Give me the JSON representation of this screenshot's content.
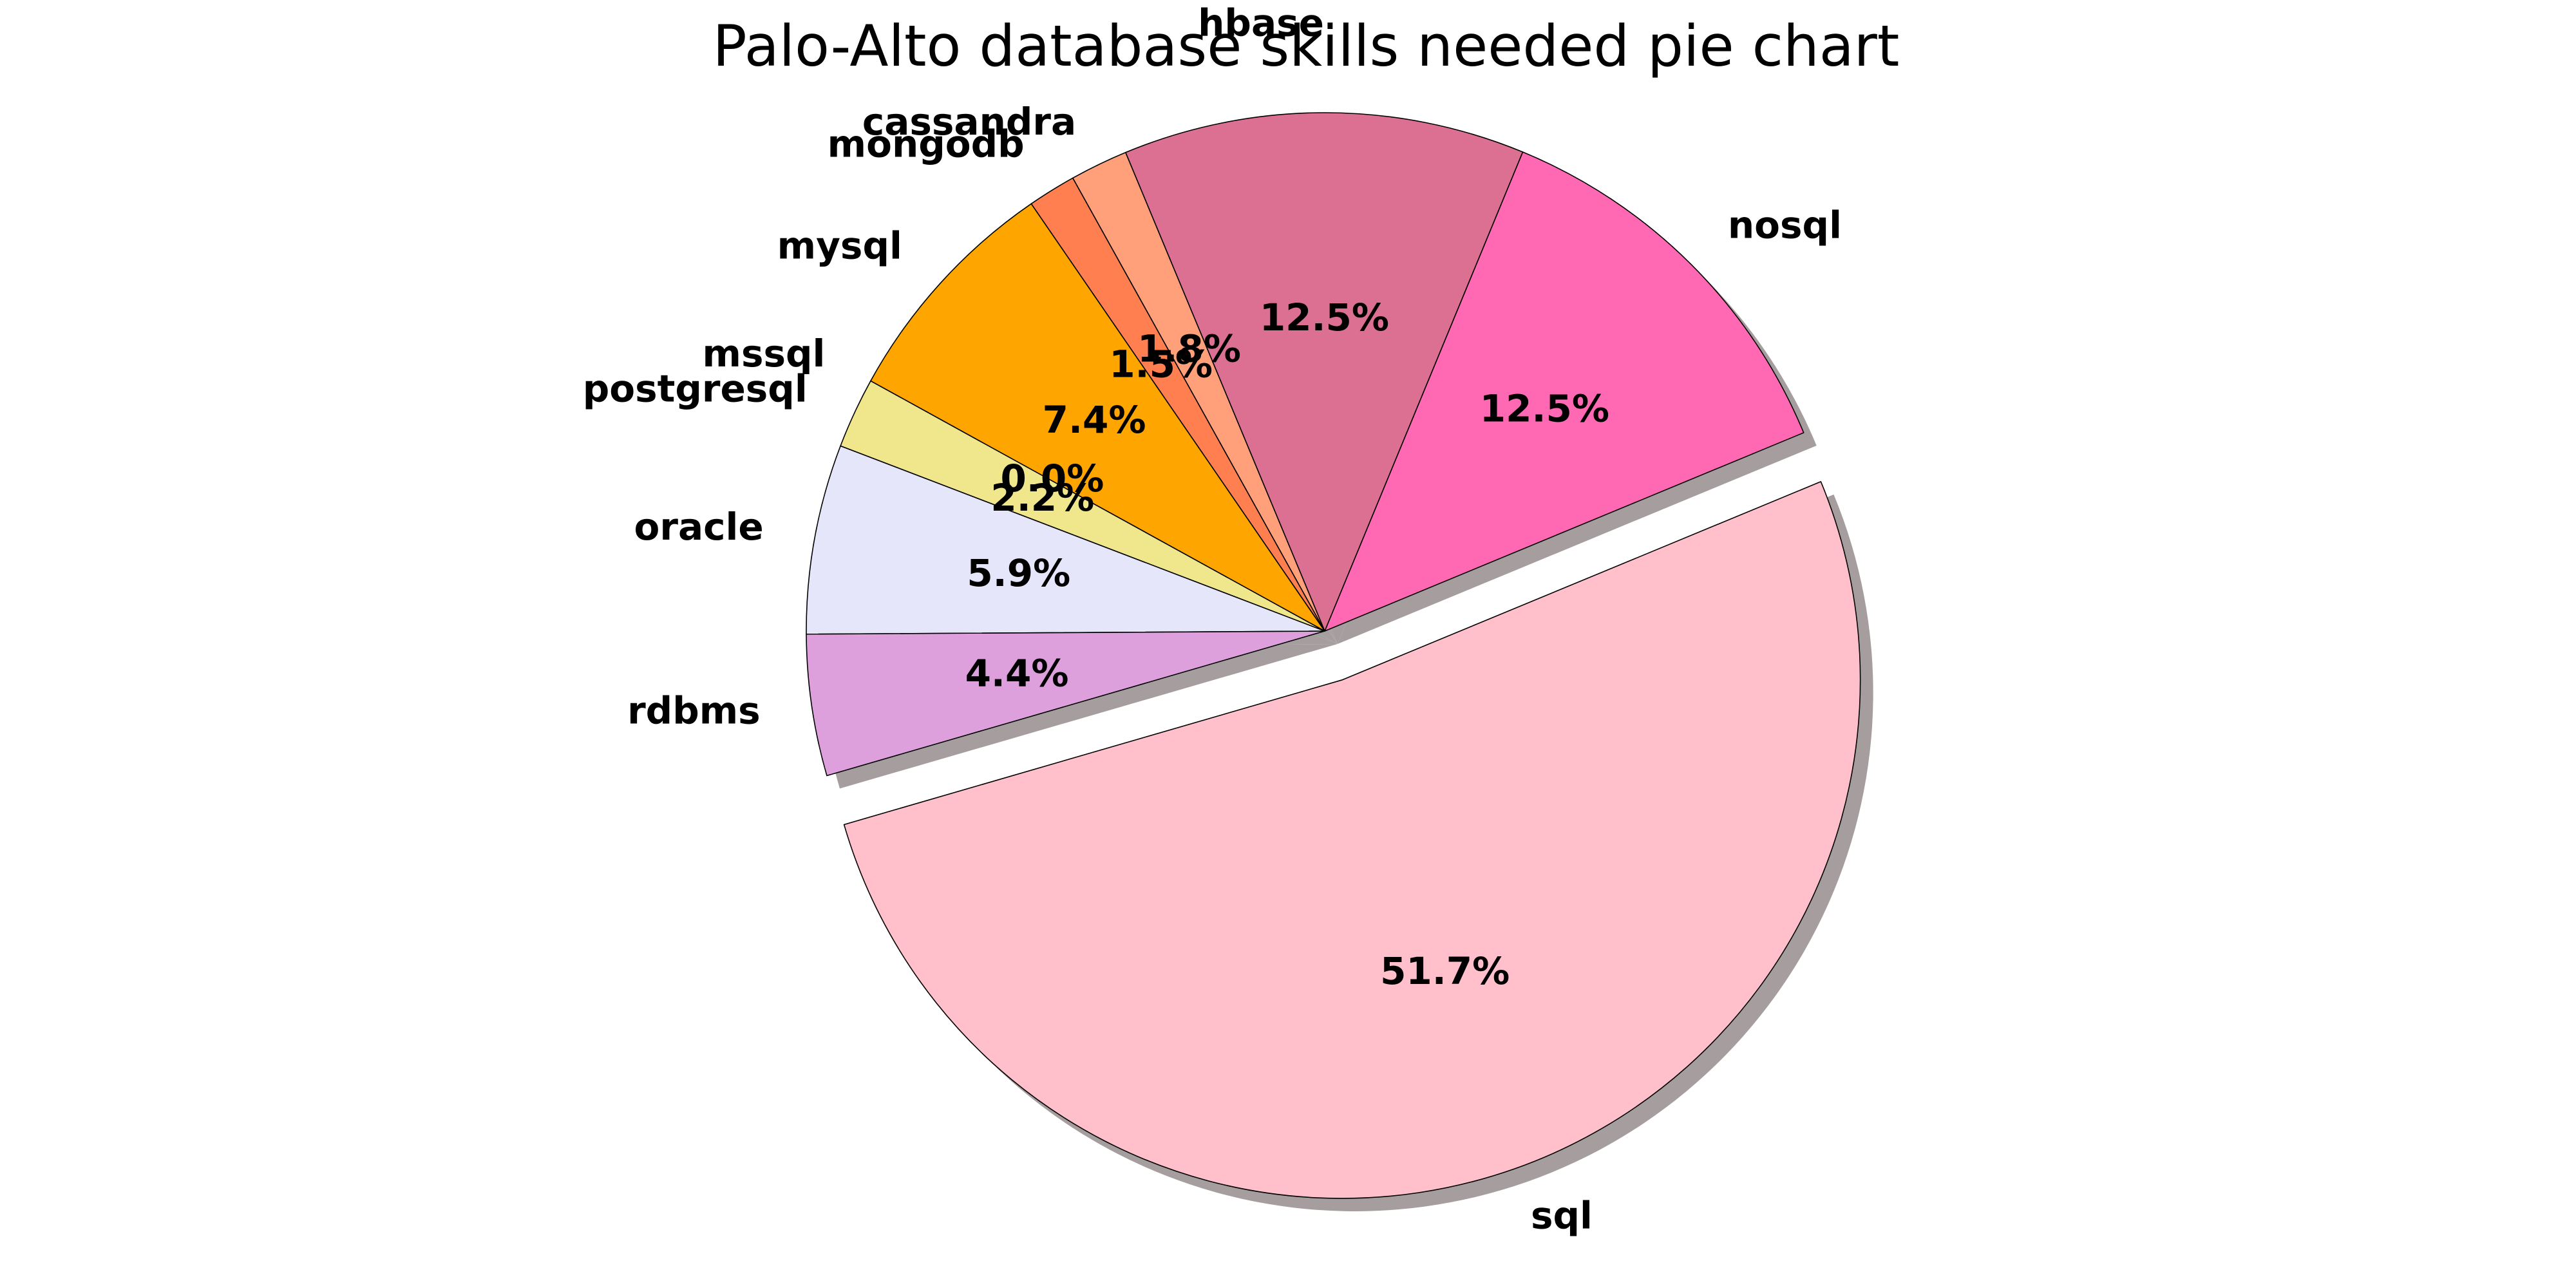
{
  "chart_data": {
    "type": "pie",
    "title": "Palo-Alto database skills needed pie chart",
    "start_angle_deg": 22.5,
    "direction": "counterclockwise",
    "shadow": true,
    "explode": [
      0,
      0,
      0,
      0,
      0,
      0,
      0,
      0,
      0,
      0.1
    ],
    "slices": [
      {
        "label": "nosql",
        "value": 12.5,
        "pct_label": "12.5%",
        "color": "#ff69b4"
      },
      {
        "label": "hbase",
        "value": 12.5,
        "pct_label": "12.5%",
        "color": "#db7093"
      },
      {
        "label": "cassandra",
        "value": 1.8,
        "pct_label": "1.8%",
        "color": "#ffa07a"
      },
      {
        "label": "mongodb",
        "value": 1.5,
        "pct_label": "1.5%",
        "color": "#ff7f50"
      },
      {
        "label": "mysql",
        "value": 7.4,
        "pct_label": "7.4%",
        "color": "#ffa500"
      },
      {
        "label": "mssql",
        "value": 0.0,
        "pct_label": "0.0%",
        "color": "#ffd700"
      },
      {
        "label": "postgresql",
        "value": 2.2,
        "pct_label": "2.2%",
        "color": "#f0e68c"
      },
      {
        "label": "oracle",
        "value": 5.9,
        "pct_label": "5.9%",
        "color": "#e6e6fa"
      },
      {
        "label": "rdbms",
        "value": 4.4,
        "pct_label": "4.4%",
        "color": "#dda0dd"
      },
      {
        "label": "sql",
        "value": 51.7,
        "pct_label": "51.7%",
        "color": "#ffc0cb"
      }
    ]
  }
}
